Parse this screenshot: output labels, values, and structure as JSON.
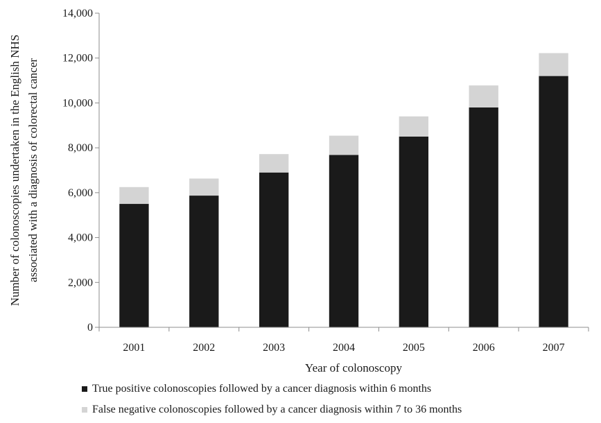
{
  "chart_data": {
    "type": "bar",
    "stacked": true,
    "categories": [
      "2001",
      "2002",
      "2003",
      "2004",
      "2005",
      "2006",
      "2007"
    ],
    "series": [
      {
        "name": "True positive colonoscopies followed by a cancer diagnosis within 6 months",
        "color": "#1a1a1a",
        "values": [
          5500,
          5870,
          6900,
          7680,
          8500,
          9800,
          11200
        ]
      },
      {
        "name": "False negative colonoscopies followed by a cancer diagnosis within 7 to 36 months",
        "color": "#d4d4d4",
        "values": [
          750,
          760,
          820,
          860,
          900,
          980,
          1020
        ]
      }
    ],
    "xlabel": "Year of colonoscopy",
    "ylabel_lines": [
      "Number of colonoscopies undertaken in the English NHS",
      "associated with a diagnosis of colorectal cancer"
    ],
    "ylim": [
      0,
      14000
    ],
    "yticks": [
      0,
      2000,
      4000,
      6000,
      8000,
      10000,
      12000,
      14000
    ],
    "ytick_labels": [
      "0",
      "2,000",
      "4,000",
      "6,000",
      "8,000",
      "10,000",
      "12,000",
      "14,000"
    ],
    "grid": false,
    "legend_position": "bottom"
  }
}
